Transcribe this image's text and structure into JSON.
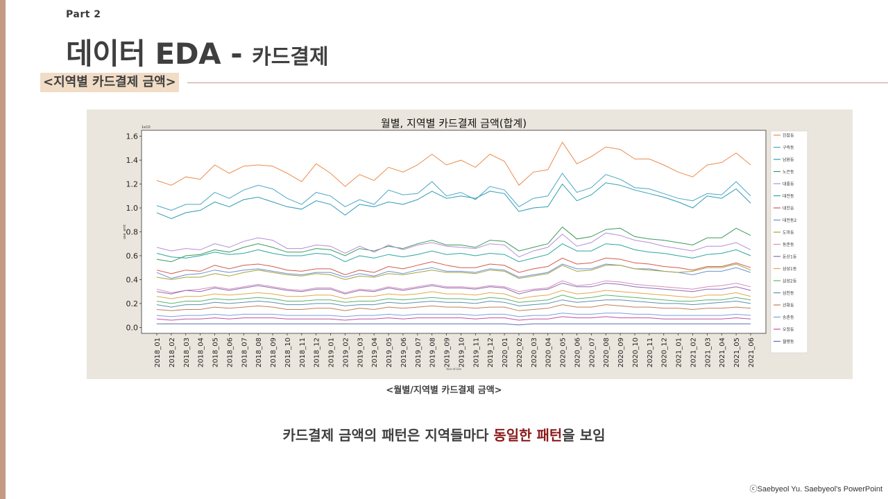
{
  "slide": {
    "part_label": "Part 2",
    "title_main": "데이터 EDA -",
    "title_sub": "카드결제",
    "section_tag": "<지역별 카드결제 금액>",
    "chart_caption": "<월별/지역별 카드결제 금액>",
    "summary_pre": "카드결제 금액의 패턴은 지역들마다 ",
    "summary_highlight": "동일한 패턴",
    "summary_post": "을 보임",
    "copyright": "ⓒSaebyeol Yu. Saebyeol's PowerPoint",
    "colors": {
      "accent_bar": "#c49a85",
      "tag_bg": "#f1dcc6",
      "panel_bg": "#ebe6dd",
      "highlight": "#8b1a1a"
    }
  },
  "chart_data": {
    "type": "line",
    "title": "월별, 지역별 카드결제 금액(합계)",
    "ylabel": "use_amt",
    "xlabel": "Year-of-Use",
    "y_scale_note": "1e10",
    "ylim": [
      -0.05,
      1.65
    ],
    "yticks": [
      "0.0",
      "0.2",
      "0.4",
      "0.6",
      "0.8",
      "1.0",
      "1.2",
      "1.4",
      "1.6"
    ],
    "legend_position": "right",
    "grid": false,
    "x": [
      "2018_01",
      "2018_02",
      "2018_03",
      "2018_04",
      "2018_05",
      "2018_06",
      "2018_07",
      "2018_08",
      "2018_09",
      "2018_10",
      "2018_11",
      "2018_12",
      "2019_01",
      "2019_02",
      "2019_03",
      "2019_04",
      "2019_05",
      "2019_06",
      "2019_07",
      "2019_08",
      "2019_09",
      "2019_10",
      "2019_11",
      "2019_12",
      "2020_01",
      "2020_02",
      "2020_03",
      "2020_04",
      "2020_05",
      "2020_06",
      "2020_07",
      "2020_08",
      "2020_09",
      "2020_10",
      "2020_11",
      "2020_12",
      "2021_01",
      "2021_02",
      "2021_03",
      "2021_04",
      "2021_05",
      "2021_06"
    ],
    "series": [
      {
        "name": "진잠동",
        "color": "#ec8b4b",
        "values": [
          1.23,
          1.19,
          1.26,
          1.24,
          1.36,
          1.29,
          1.35,
          1.36,
          1.35,
          1.29,
          1.22,
          1.37,
          1.29,
          1.18,
          1.28,
          1.23,
          1.34,
          1.3,
          1.36,
          1.45,
          1.36,
          1.4,
          1.34,
          1.45,
          1.39,
          1.19,
          1.3,
          1.32,
          1.55,
          1.37,
          1.43,
          1.51,
          1.49,
          1.41,
          1.41,
          1.36,
          1.3,
          1.26,
          1.36,
          1.38,
          1.46,
          1.36
        ]
      },
      {
        "name": "구즉동",
        "color": "#4aa5c8",
        "values": [
          1.02,
          0.98,
          1.03,
          1.03,
          1.13,
          1.08,
          1.15,
          1.19,
          1.16,
          1.08,
          1.03,
          1.13,
          1.1,
          1.01,
          1.07,
          1.03,
          1.15,
          1.11,
          1.12,
          1.22,
          1.1,
          1.13,
          1.07,
          1.18,
          1.15,
          1.01,
          1.08,
          1.1,
          1.29,
          1.13,
          1.17,
          1.28,
          1.24,
          1.17,
          1.16,
          1.12,
          1.08,
          1.06,
          1.12,
          1.11,
          1.22,
          1.1
        ]
      },
      {
        "name": "남원동",
        "color": "#2b9bb3",
        "values": [
          0.96,
          0.91,
          0.96,
          0.98,
          1.05,
          1.01,
          1.07,
          1.09,
          1.05,
          1.01,
          0.99,
          1.06,
          1.03,
          0.94,
          1.03,
          1.01,
          1.05,
          1.03,
          1.07,
          1.14,
          1.08,
          1.1,
          1.08,
          1.14,
          1.12,
          0.97,
          1.0,
          1.01,
          1.2,
          1.06,
          1.11,
          1.21,
          1.19,
          1.15,
          1.12,
          1.09,
          1.05,
          1.0,
          1.1,
          1.08,
          1.16,
          1.04
        ]
      },
      {
        "name": "노은동",
        "color": "#3a9a5b",
        "values": [
          0.57,
          0.55,
          0.6,
          0.61,
          0.65,
          0.63,
          0.67,
          0.7,
          0.67,
          0.63,
          0.63,
          0.66,
          0.65,
          0.6,
          0.66,
          0.64,
          0.68,
          0.66,
          0.7,
          0.73,
          0.69,
          0.69,
          0.67,
          0.73,
          0.72,
          0.64,
          0.67,
          0.7,
          0.84,
          0.74,
          0.76,
          0.82,
          0.83,
          0.76,
          0.74,
          0.73,
          0.71,
          0.69,
          0.75,
          0.75,
          0.83,
          0.77
        ]
      },
      {
        "name": "대흥동",
        "color": "#b58cd6",
        "values": [
          0.67,
          0.64,
          0.66,
          0.65,
          0.7,
          0.67,
          0.72,
          0.75,
          0.73,
          0.66,
          0.66,
          0.69,
          0.68,
          0.62,
          0.68,
          0.63,
          0.69,
          0.65,
          0.69,
          0.71,
          0.68,
          0.67,
          0.66,
          0.7,
          0.69,
          0.59,
          0.64,
          0.67,
          0.78,
          0.68,
          0.71,
          0.79,
          0.77,
          0.73,
          0.71,
          0.68,
          0.66,
          0.64,
          0.68,
          0.68,
          0.71,
          0.65
        ]
      },
      {
        "name": "대전동",
        "color": "#2aa5a0",
        "values": [
          0.62,
          0.59,
          0.58,
          0.6,
          0.63,
          0.61,
          0.62,
          0.65,
          0.62,
          0.6,
          0.6,
          0.62,
          0.61,
          0.55,
          0.6,
          0.58,
          0.61,
          0.59,
          0.61,
          0.64,
          0.61,
          0.62,
          0.6,
          0.62,
          0.61,
          0.55,
          0.58,
          0.61,
          0.7,
          0.64,
          0.64,
          0.7,
          0.69,
          0.65,
          0.63,
          0.62,
          0.6,
          0.58,
          0.61,
          0.62,
          0.65,
          0.6
        ]
      },
      {
        "name": "대전송",
        "color": "#d25a4b",
        "values": [
          0.48,
          0.45,
          0.48,
          0.47,
          0.52,
          0.49,
          0.52,
          0.53,
          0.51,
          0.48,
          0.47,
          0.49,
          0.49,
          0.44,
          0.48,
          0.46,
          0.51,
          0.49,
          0.52,
          0.55,
          0.52,
          0.5,
          0.5,
          0.53,
          0.52,
          0.46,
          0.49,
          0.51,
          0.58,
          0.53,
          0.54,
          0.58,
          0.57,
          0.54,
          0.53,
          0.51,
          0.5,
          0.48,
          0.51,
          0.51,
          0.54,
          0.5
        ]
      },
      {
        "name": "대전동2",
        "color": "#6a8fd0",
        "values": [
          0.46,
          0.41,
          0.44,
          0.45,
          0.48,
          0.46,
          0.48,
          0.49,
          0.47,
          0.45,
          0.44,
          0.46,
          0.46,
          0.42,
          0.45,
          0.43,
          0.47,
          0.45,
          0.48,
          0.5,
          0.47,
          0.47,
          0.46,
          0.49,
          0.48,
          0.42,
          0.44,
          0.46,
          0.53,
          0.49,
          0.49,
          0.53,
          0.52,
          0.49,
          0.49,
          0.47,
          0.46,
          0.44,
          0.47,
          0.47,
          0.5,
          0.46
        ]
      },
      {
        "name": "도마동",
        "color": "#a3a33a",
        "values": [
          0.42,
          0.4,
          0.42,
          0.42,
          0.45,
          0.43,
          0.46,
          0.48,
          0.46,
          0.44,
          0.43,
          0.45,
          0.44,
          0.4,
          0.43,
          0.42,
          0.45,
          0.44,
          0.46,
          0.48,
          0.46,
          0.46,
          0.45,
          0.48,
          0.47,
          0.41,
          0.43,
          0.45,
          0.52,
          0.47,
          0.48,
          0.52,
          0.52,
          0.49,
          0.48,
          0.47,
          0.46,
          0.47,
          0.5,
          0.5,
          0.53,
          0.48
        ]
      },
      {
        "name": "동춘동",
        "color": "#d68ab8",
        "values": [
          0.32,
          0.29,
          0.31,
          0.32,
          0.34,
          0.32,
          0.34,
          0.36,
          0.34,
          0.32,
          0.31,
          0.33,
          0.33,
          0.29,
          0.32,
          0.31,
          0.34,
          0.32,
          0.34,
          0.36,
          0.34,
          0.34,
          0.33,
          0.35,
          0.34,
          0.3,
          0.32,
          0.33,
          0.39,
          0.35,
          0.36,
          0.39,
          0.38,
          0.36,
          0.35,
          0.34,
          0.33,
          0.32,
          0.34,
          0.35,
          0.37,
          0.34
        ]
      },
      {
        "name": "둔산1동",
        "color": "#8c6bb1",
        "values": [
          0.3,
          0.28,
          0.31,
          0.3,
          0.33,
          0.31,
          0.33,
          0.35,
          0.33,
          0.31,
          0.3,
          0.32,
          0.32,
          0.28,
          0.31,
          0.3,
          0.33,
          0.31,
          0.33,
          0.35,
          0.33,
          0.33,
          0.32,
          0.34,
          0.33,
          0.28,
          0.31,
          0.32,
          0.37,
          0.34,
          0.34,
          0.37,
          0.36,
          0.34,
          0.33,
          0.32,
          0.31,
          0.3,
          0.32,
          0.32,
          0.34,
          0.31
        ]
      },
      {
        "name": "삼성1동",
        "color": "#e3a64f",
        "values": [
          0.26,
          0.24,
          0.26,
          0.26,
          0.28,
          0.27,
          0.28,
          0.29,
          0.28,
          0.26,
          0.26,
          0.27,
          0.27,
          0.24,
          0.26,
          0.26,
          0.28,
          0.27,
          0.28,
          0.3,
          0.28,
          0.28,
          0.27,
          0.29,
          0.28,
          0.24,
          0.26,
          0.27,
          0.31,
          0.28,
          0.29,
          0.31,
          0.3,
          0.29,
          0.28,
          0.27,
          0.26,
          0.25,
          0.27,
          0.27,
          0.29,
          0.26
        ]
      },
      {
        "name": "삼성2동",
        "color": "#5ab36e",
        "values": [
          0.22,
          0.2,
          0.22,
          0.22,
          0.24,
          0.23,
          0.24,
          0.25,
          0.24,
          0.22,
          0.22,
          0.23,
          0.23,
          0.21,
          0.22,
          0.22,
          0.24,
          0.23,
          0.24,
          0.25,
          0.24,
          0.24,
          0.23,
          0.25,
          0.24,
          0.21,
          0.22,
          0.23,
          0.27,
          0.24,
          0.25,
          0.27,
          0.26,
          0.25,
          0.24,
          0.23,
          0.22,
          0.22,
          0.23,
          0.23,
          0.25,
          0.23
        ]
      },
      {
        "name": "삼천동",
        "color": "#5c8fb0",
        "values": [
          0.19,
          0.17,
          0.19,
          0.19,
          0.21,
          0.2,
          0.21,
          0.22,
          0.21,
          0.19,
          0.19,
          0.2,
          0.2,
          0.18,
          0.19,
          0.19,
          0.21,
          0.2,
          0.21,
          0.22,
          0.21,
          0.21,
          0.2,
          0.22,
          0.21,
          0.18,
          0.19,
          0.2,
          0.23,
          0.21,
          0.22,
          0.23,
          0.23,
          0.22,
          0.21,
          0.2,
          0.2,
          0.19,
          0.2,
          0.21,
          0.22,
          0.2
        ]
      },
      {
        "name": "선화동",
        "color": "#c07f52",
        "values": [
          0.15,
          0.14,
          0.15,
          0.15,
          0.17,
          0.16,
          0.17,
          0.18,
          0.17,
          0.15,
          0.15,
          0.16,
          0.16,
          0.14,
          0.16,
          0.15,
          0.17,
          0.16,
          0.17,
          0.18,
          0.17,
          0.17,
          0.16,
          0.17,
          0.17,
          0.14,
          0.15,
          0.16,
          0.19,
          0.17,
          0.17,
          0.19,
          0.18,
          0.17,
          0.17,
          0.16,
          0.16,
          0.15,
          0.16,
          0.16,
          0.17,
          0.16
        ]
      },
      {
        "name": "송촌동",
        "color": "#7aa0d8",
        "values": [
          0.1,
          0.09,
          0.1,
          0.1,
          0.11,
          0.1,
          0.11,
          0.11,
          0.11,
          0.1,
          0.1,
          0.1,
          0.1,
          0.09,
          0.1,
          0.1,
          0.11,
          0.1,
          0.11,
          0.11,
          0.11,
          0.11,
          0.1,
          0.11,
          0.11,
          0.09,
          0.1,
          0.1,
          0.12,
          0.11,
          0.11,
          0.12,
          0.12,
          0.11,
          0.11,
          0.1,
          0.1,
          0.1,
          0.1,
          0.1,
          0.11,
          0.1
        ]
      },
      {
        "name": "오정동",
        "color": "#c44fa0",
        "values": [
          0.07,
          0.06,
          0.07,
          0.07,
          0.08,
          0.07,
          0.08,
          0.08,
          0.08,
          0.07,
          0.07,
          0.07,
          0.07,
          0.06,
          0.07,
          0.07,
          0.08,
          0.07,
          0.08,
          0.08,
          0.08,
          0.08,
          0.07,
          0.08,
          0.08,
          0.06,
          0.07,
          0.07,
          0.09,
          0.08,
          0.08,
          0.09,
          0.08,
          0.08,
          0.08,
          0.07,
          0.07,
          0.07,
          0.07,
          0.07,
          0.08,
          0.07
        ]
      },
      {
        "name": "월평동",
        "color": "#5b6fb5",
        "values": [
          0.03,
          0.03,
          0.03,
          0.03,
          0.03,
          0.03,
          0.03,
          0.03,
          0.03,
          0.03,
          0.03,
          0.03,
          0.03,
          0.03,
          0.03,
          0.03,
          0.03,
          0.03,
          0.03,
          0.03,
          0.03,
          0.03,
          0.03,
          0.03,
          0.03,
          0.02,
          0.03,
          0.03,
          0.03,
          0.03,
          0.03,
          0.03,
          0.03,
          0.03,
          0.03,
          0.03,
          0.03,
          0.03,
          0.03,
          0.03,
          0.03,
          0.03
        ]
      }
    ]
  }
}
